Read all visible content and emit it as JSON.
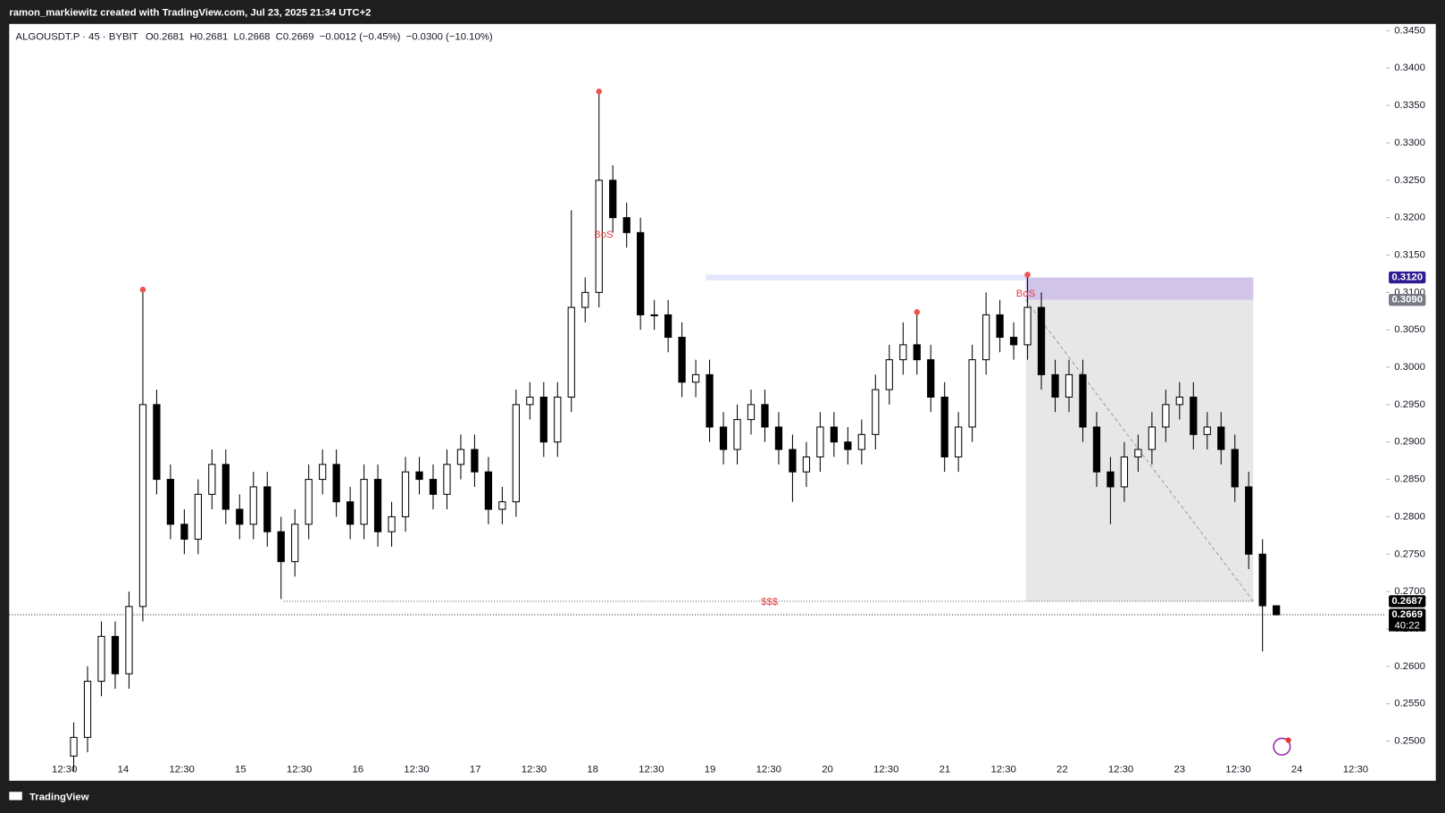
{
  "header": {
    "credit": "ramon_markiewitz created with TradingView.com, Jul 23, 2025 21:34 UTC+2"
  },
  "footer": {
    "brand": "TradingView"
  },
  "chart_data": {
    "type": "candlestick",
    "legend": {
      "symbol": "ALGOUSDT.P · 45 · BYBIT",
      "open": "O0.2681",
      "high": "H0.2681",
      "low": "L0.2668",
      "close": "C0.2669",
      "change": "−0.0012 (−0.45%)",
      "range_change": "−0.0300 (−10.10%)"
    },
    "x_labels": [
      "12:30",
      "14",
      "12:30",
      "15",
      "12:30",
      "16",
      "12:30",
      "17",
      "12:30",
      "18",
      "12:30",
      "19",
      "12:30",
      "20",
      "12:30",
      "21",
      "12:30",
      "22",
      "12:30",
      "23",
      "12:30",
      "24",
      "12:30"
    ],
    "ylim": [
      0.2447,
      0.3459
    ],
    "yticks": [
      {
        "value": 0.25,
        "label": "0.2500"
      },
      {
        "value": 0.255,
        "label": "0.2550"
      },
      {
        "value": 0.26,
        "label": "0.2600"
      },
      {
        "value": 0.265,
        "label": "0.2650"
      },
      {
        "value": 0.27,
        "label": "0.2700"
      },
      {
        "value": 0.275,
        "label": "0.2750"
      },
      {
        "value": 0.28,
        "label": "0.2800"
      },
      {
        "value": 0.285,
        "label": "0.2850"
      },
      {
        "value": 0.29,
        "label": "0.2900"
      },
      {
        "value": 0.295,
        "label": "0.2950"
      },
      {
        "value": 0.3,
        "label": "0.3000"
      },
      {
        "value": 0.305,
        "label": "0.3050"
      },
      {
        "value": 0.31,
        "label": "0.3100"
      },
      {
        "value": 0.315,
        "label": "0.3150"
      },
      {
        "value": 0.32,
        "label": "0.3200"
      },
      {
        "value": 0.325,
        "label": "0.3250"
      },
      {
        "value": 0.33,
        "label": "0.3300"
      },
      {
        "value": 0.335,
        "label": "0.3350"
      },
      {
        "value": 0.34,
        "label": "0.3400"
      },
      {
        "value": 0.345,
        "label": "0.3450"
      }
    ],
    "up_color": "#ffffff",
    "down_color": "#000000",
    "open": [
      0.248,
      0.2505,
      0.258,
      0.264,
      0.259,
      0.268,
      0.295,
      0.285,
      0.279,
      0.277,
      0.283,
      0.287,
      0.281,
      0.279,
      0.284,
      0.278,
      0.274,
      0.279,
      0.285,
      0.287,
      0.282,
      0.279,
      0.285,
      0.278,
      0.28,
      0.286,
      0.285,
      0.283,
      0.287,
      0.289,
      0.286,
      0.281,
      0.282,
      0.295,
      0.296,
      0.29,
      0.296,
      0.308,
      0.31,
      0.325,
      0.32,
      0.318,
      0.307,
      0.307,
      0.304,
      0.298,
      0.299,
      0.292,
      0.289,
      0.293,
      0.295,
      0.292,
      0.289,
      0.286,
      0.288,
      0.292,
      0.29,
      0.289,
      0.291,
      0.297,
      0.301,
      0.303,
      0.301,
      0.296,
      0.288,
      0.292,
      0.301,
      0.307,
      0.304,
      0.303,
      0.308,
      0.299,
      0.296,
      0.299,
      0.292,
      0.286,
      0.284,
      0.288,
      0.289,
      0.292,
      0.295,
      0.296,
      0.291,
      0.292,
      0.289,
      0.284,
      0.275,
      0.2681
    ],
    "high": [
      0.2525,
      0.26,
      0.266,
      0.266,
      0.27,
      0.31,
      0.297,
      0.287,
      0.281,
      0.285,
      0.289,
      0.289,
      0.283,
      0.286,
      0.286,
      0.28,
      0.281,
      0.287,
      0.289,
      0.289,
      0.284,
      0.287,
      0.287,
      0.282,
      0.288,
      0.288,
      0.287,
      0.289,
      0.291,
      0.291,
      0.288,
      0.284,
      0.297,
      0.298,
      0.298,
      0.298,
      0.321,
      0.312,
      0.3365,
      0.327,
      0.322,
      0.32,
      0.309,
      0.309,
      0.306,
      0.301,
      0.301,
      0.294,
      0.295,
      0.297,
      0.297,
      0.294,
      0.291,
      0.29,
      0.294,
      0.294,
      0.292,
      0.293,
      0.299,
      0.303,
      0.306,
      0.307,
      0.303,
      0.298,
      0.294,
      0.303,
      0.31,
      0.309,
      0.306,
      0.312,
      0.31,
      0.301,
      0.301,
      0.301,
      0.294,
      0.288,
      0.29,
      0.291,
      0.294,
      0.297,
      0.298,
      0.298,
      0.294,
      0.294,
      0.291,
      0.286,
      0.277,
      0.2681
    ],
    "low": [
      0.246,
      0.2485,
      0.256,
      0.257,
      0.257,
      0.266,
      0.283,
      0.277,
      0.275,
      0.275,
      0.281,
      0.279,
      0.277,
      0.277,
      0.276,
      0.269,
      0.272,
      0.277,
      0.283,
      0.28,
      0.277,
      0.277,
      0.276,
      0.276,
      0.278,
      0.283,
      0.281,
      0.281,
      0.285,
      0.284,
      0.279,
      0.279,
      0.28,
      0.293,
      0.288,
      0.288,
      0.294,
      0.306,
      0.308,
      0.318,
      0.316,
      0.305,
      0.305,
      0.302,
      0.296,
      0.296,
      0.29,
      0.287,
      0.287,
      0.291,
      0.29,
      0.287,
      0.282,
      0.284,
      0.286,
      0.288,
      0.287,
      0.287,
      0.289,
      0.295,
      0.299,
      0.299,
      0.294,
      0.286,
      0.286,
      0.29,
      0.299,
      0.302,
      0.301,
      0.301,
      0.297,
      0.294,
      0.294,
      0.29,
      0.284,
      0.279,
      0.282,
      0.286,
      0.287,
      0.29,
      0.293,
      0.289,
      0.289,
      0.287,
      0.282,
      0.273,
      0.262,
      0.2668
    ],
    "close": [
      0.2505,
      0.258,
      0.264,
      0.259,
      0.268,
      0.295,
      0.285,
      0.279,
      0.277,
      0.283,
      0.287,
      0.281,
      0.279,
      0.284,
      0.278,
      0.274,
      0.279,
      0.285,
      0.287,
      0.282,
      0.279,
      0.285,
      0.278,
      0.28,
      0.286,
      0.285,
      0.283,
      0.287,
      0.289,
      0.286,
      0.281,
      0.282,
      0.295,
      0.296,
      0.29,
      0.296,
      0.308,
      0.31,
      0.325,
      0.32,
      0.318,
      0.307,
      0.307,
      0.304,
      0.298,
      0.299,
      0.292,
      0.289,
      0.293,
      0.295,
      0.292,
      0.289,
      0.286,
      0.288,
      0.292,
      0.29,
      0.289,
      0.291,
      0.297,
      0.301,
      0.303,
      0.301,
      0.296,
      0.288,
      0.292,
      0.301,
      0.307,
      0.304,
      0.303,
      0.308,
      0.299,
      0.296,
      0.299,
      0.292,
      0.286,
      0.284,
      0.288,
      0.289,
      0.292,
      0.295,
      0.296,
      0.291,
      0.292,
      0.289,
      0.284,
      0.275,
      0.2681,
      0.2669
    ],
    "zone": {
      "top": {
        "value": 0.312,
        "label": "0.3120"
      },
      "bottom": {
        "value": 0.309,
        "label": "0.3090"
      }
    },
    "target": {
      "value": 0.2687,
      "label": "0.2687"
    },
    "last_price": {
      "value": 0.2669,
      "label": "0.2669"
    },
    "countdown": "40:22",
    "annotations": {
      "bos_1": "BoS",
      "bos_2": "BoS",
      "liquidity": "$$$"
    }
  }
}
